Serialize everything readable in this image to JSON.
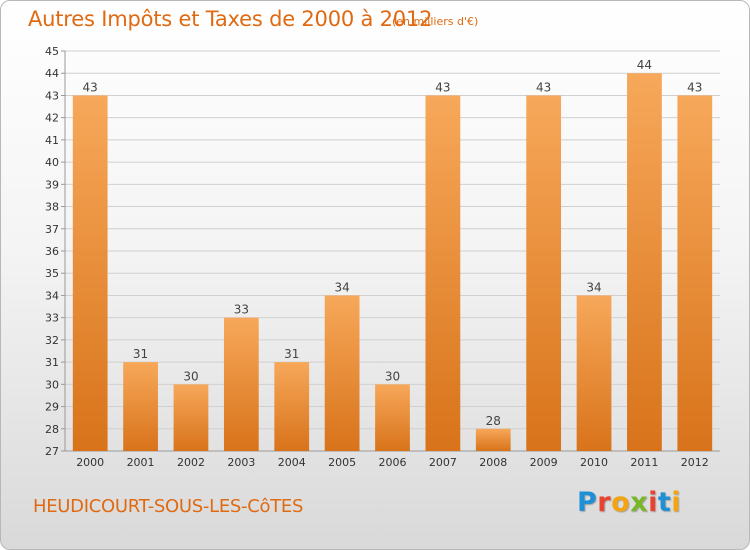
{
  "header": {
    "title": "Autres Impôts et Taxes de 2000 à 2012",
    "unit": "(en milliers d'€)"
  },
  "footer": {
    "town": "HEUDICOURT-SOUS-LES-CôTES",
    "logo": {
      "p": "P",
      "r": "r",
      "o": "o",
      "x": "x",
      "i1": "i",
      "t": "t",
      "i2": "i"
    }
  },
  "colors": {
    "bar_top": "#f7a85a",
    "bar_bottom": "#d8731a",
    "accent": "#e06a12",
    "grid": "#d0d0d0"
  },
  "chart_data": {
    "type": "bar",
    "title": "Autres Impôts et Taxes de 2000 à 2012",
    "subtitle": "(en milliers d'€)",
    "categories": [
      "2000",
      "2001",
      "2002",
      "2003",
      "2004",
      "2005",
      "2006",
      "2007",
      "2008",
      "2009",
      "2010",
      "2011",
      "2012"
    ],
    "values": [
      43,
      31,
      30,
      33,
      31,
      34,
      30,
      43,
      28,
      43,
      34,
      44,
      43
    ],
    "ylim": [
      27,
      45
    ],
    "yticks": [
      27,
      28,
      29,
      30,
      31,
      32,
      33,
      34,
      35,
      36,
      37,
      38,
      39,
      40,
      41,
      42,
      43,
      44,
      45
    ],
    "grid": true,
    "data_labels": true
  }
}
